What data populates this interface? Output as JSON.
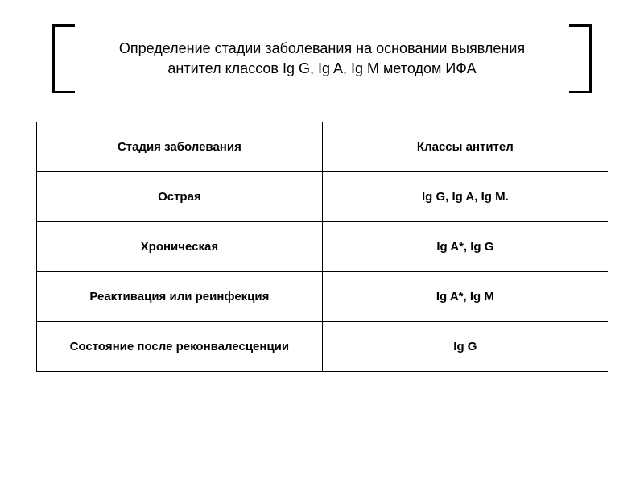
{
  "title_line1": "Определение стадии заболевания на основании выявления",
  "title_line2": "антител классов Ig G, Ig A, Ig M методом ИФА",
  "table": {
    "header": {
      "col1": "Стадия заболевания",
      "col2": "Классы антител"
    },
    "rows": [
      {
        "stage": "Острая",
        "antibodies": "Ig G, Ig A, Ig M."
      },
      {
        "stage": "Хроническая",
        "antibodies": "Ig A*, Ig G"
      },
      {
        "stage": "Реактивация или реинфекция",
        "antibodies": "Ig A*, Ig M"
      },
      {
        "stage": "Состояние после реконвалесценции",
        "antibodies": "Ig G"
      }
    ]
  },
  "colors": {
    "background": "#ffffff",
    "text": "#000000",
    "border": "#000000",
    "bracket": "#000000"
  },
  "typography": {
    "title_fontsize": 18,
    "cell_fontsize": 15,
    "font_family": "Arial"
  },
  "layout": {
    "col1_width_pct": 50,
    "col2_width_pct": 50,
    "cell_padding_v": 22,
    "cell_padding_h": 15
  }
}
